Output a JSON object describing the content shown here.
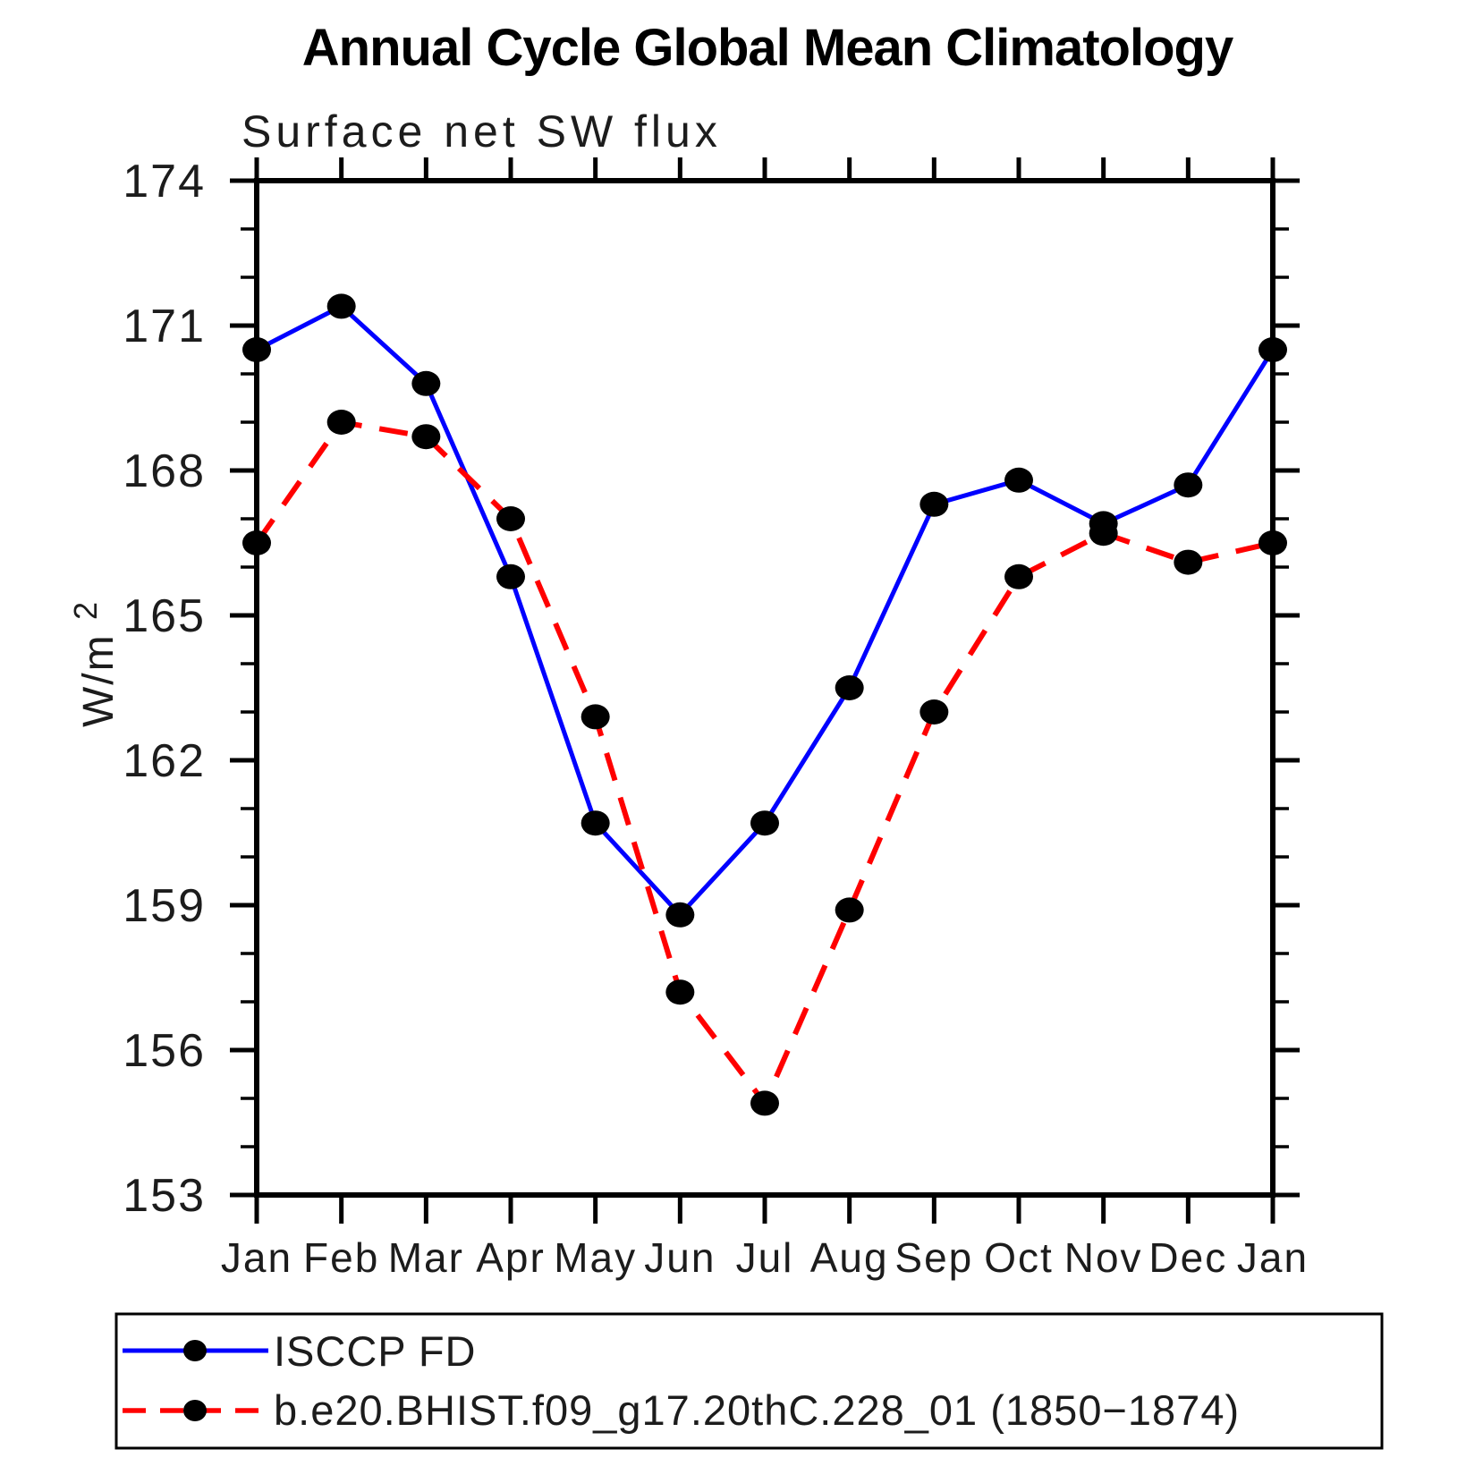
{
  "title": "Annual Cycle Global Mean Climatology",
  "subtitle": "Surface net SW flux",
  "y_axis": {
    "label_base": "W/m",
    "label_sup": "2",
    "tick_labels": [
      "153",
      "156",
      "159",
      "162",
      "165",
      "168",
      "171",
      "174"
    ]
  },
  "x_axis": {
    "tick_labels": [
      "Jan",
      "Feb",
      "Mar",
      "Apr",
      "May",
      "Jun",
      "Jul",
      "Aug",
      "Sep",
      "Oct",
      "Nov",
      "Dec",
      "Jan"
    ]
  },
  "chart_data": {
    "type": "line",
    "title": "Annual Cycle Global Mean Climatology",
    "subtitle": "Surface net SW flux",
    "xlabel": "",
    "ylabel": "W/m^2",
    "categories": [
      "Jan",
      "Feb",
      "Mar",
      "Apr",
      "May",
      "Jun",
      "Jul",
      "Aug",
      "Sep",
      "Oct",
      "Nov",
      "Dec",
      "Jan"
    ],
    "series": [
      {
        "name": "ISCCP FD",
        "color": "#0000ff",
        "line_style": "solid",
        "line_width": 5,
        "marker": "filled-circle",
        "marker_color": "#000000",
        "values": [
          170.5,
          171.4,
          169.8,
          165.8,
          160.7,
          158.8,
          160.7,
          163.5,
          167.3,
          167.8,
          166.9,
          167.7,
          170.5
        ]
      },
      {
        "name": "b.e20.BHIST.f09_g17.20thC.228_01 (1850−1874)",
        "color": "#ff0000",
        "line_style": "dashed",
        "line_width": 6,
        "marker": "filled-circle",
        "marker_color": "#000000",
        "values": [
          166.5,
          169.0,
          168.7,
          167.0,
          162.9,
          157.2,
          154.9,
          158.9,
          163.0,
          165.8,
          166.7,
          166.1,
          166.5
        ]
      }
    ],
    "ylim": [
      153,
      174
    ],
    "ytick_major_step": 3,
    "ytick_minor_step": 1,
    "grid": false,
    "frame_color": "#000000",
    "legend_position": "bottom"
  }
}
